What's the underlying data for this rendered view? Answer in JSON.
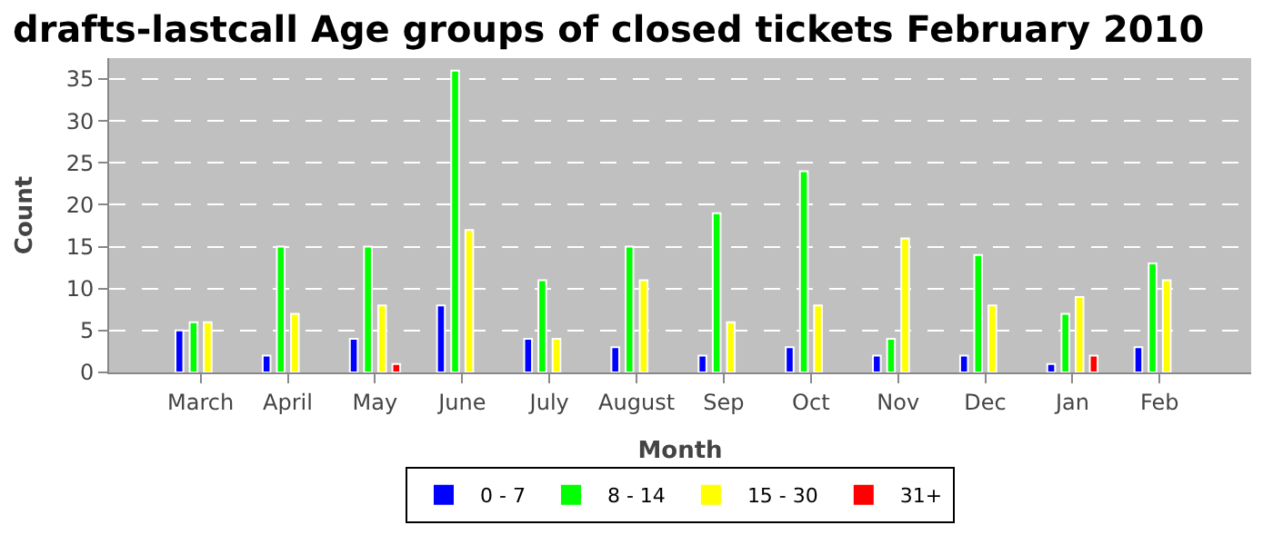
{
  "chart_data": {
    "type": "bar",
    "title": "drafts-lastcall Age groups of closed tickets February 2010",
    "xlabel": "Month",
    "ylabel": "Count",
    "categories": [
      "March",
      "April",
      "May",
      "June",
      "July",
      "August",
      "Sep",
      "Oct",
      "Nov",
      "Dec",
      "Jan",
      "Feb"
    ],
    "series": [
      {
        "name": "0 - 7",
        "color": "#0000ff",
        "values": [
          5,
          2,
          4,
          8,
          4,
          3,
          2,
          3,
          2,
          2,
          1,
          3
        ]
      },
      {
        "name": "8 - 14",
        "color": "#00ff00",
        "values": [
          6,
          15,
          15,
          36,
          11,
          15,
          19,
          24,
          4,
          14,
          7,
          13
        ]
      },
      {
        "name": "15 - 30",
        "color": "#ffff00",
        "values": [
          6,
          7,
          8,
          17,
          4,
          11,
          6,
          8,
          16,
          8,
          9,
          11
        ]
      },
      {
        "name": "31+",
        "color": "#ff0000",
        "values": [
          null,
          null,
          1,
          null,
          null,
          null,
          null,
          null,
          null,
          null,
          2,
          null
        ]
      }
    ],
    "ylim": [
      0,
      37.5
    ],
    "yticks": [
      0,
      5,
      10,
      15,
      20,
      25,
      30,
      35
    ],
    "grid": "y",
    "legend": "bottom"
  }
}
